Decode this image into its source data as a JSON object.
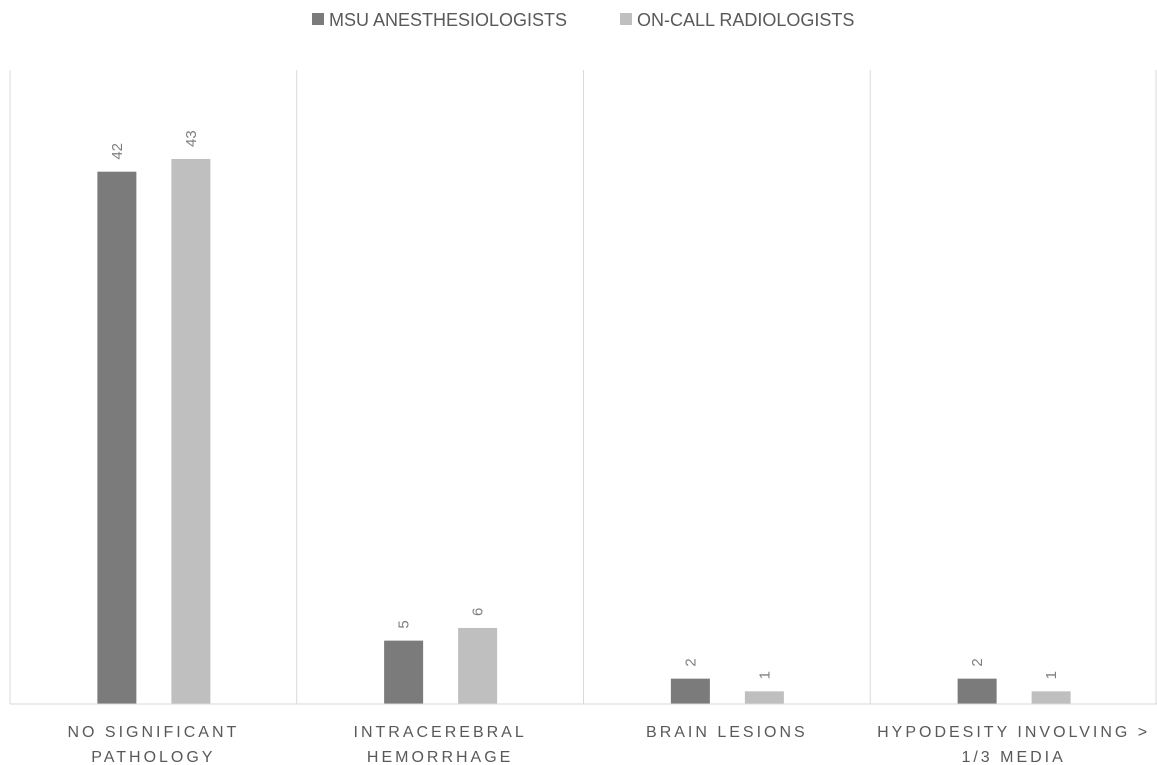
{
  "colors": {
    "series_dark": "#7b7b7b",
    "series_light": "#bfbfbf",
    "grid": "#d9d9d9",
    "axis": "#d9d9d9"
  },
  "chart_data": {
    "type": "bar",
    "title": "",
    "xlabel": "",
    "ylabel": "",
    "grid": "vertical category separators",
    "legend_position": "top",
    "ylim": [
      0,
      43
    ],
    "categories": [
      [
        "NO SIGNIFICANT",
        "PATHOLOGY"
      ],
      [
        "INTRACEREBRAL",
        "HEMORRHAGE"
      ],
      [
        "BRAIN LESIONS"
      ],
      [
        "HYPODESITY INVOLVING >",
        "1/3 MEDIA"
      ]
    ],
    "series": [
      {
        "name": "MSU ANESTHESIOLOGISTS",
        "values": [
          42,
          5,
          2,
          2
        ]
      },
      {
        "name": "ON-CALL RADIOLOGISTS",
        "values": [
          43,
          6,
          1,
          1
        ]
      }
    ]
  }
}
